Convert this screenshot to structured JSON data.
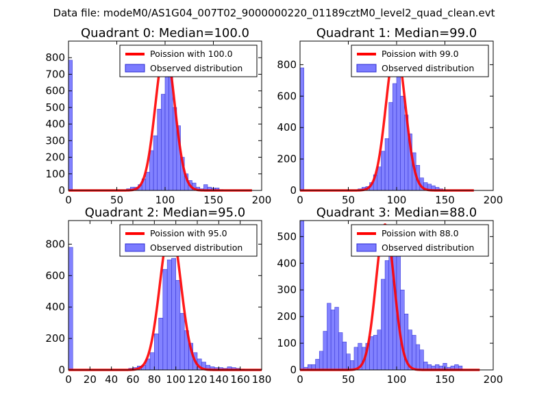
{
  "figure_title": "Data file: modeM0/AS1G04_007T02_9000000220_01189cztM0_level2_quad_clean.evt",
  "colors": {
    "fit": "#ff0000",
    "hist_fill": "#7b7bff",
    "hist_edge": "#2a2ad0",
    "axis": "#000000"
  },
  "chart_data": [
    {
      "type": "bar",
      "title": "Quadrant 0: Median=100.0",
      "legend": [
        "Poission with 100.0",
        "Observed distribution"
      ],
      "xlim": [
        0,
        200
      ],
      "ylim": [
        0,
        900
      ],
      "xticks": [
        0,
        50,
        100,
        150,
        200
      ],
      "yticks": [
        0,
        100,
        200,
        300,
        400,
        500,
        600,
        700,
        800
      ],
      "xtick_labels": [
        "0",
        "50",
        "100",
        "150",
        "200"
      ],
      "ytick_labels": [
        "0",
        "100",
        "200",
        "300",
        "400",
        "500",
        "600",
        "700",
        "800"
      ],
      "bin_width": 4,
      "bins": [
        [
          0,
          785
        ],
        [
          60,
          10
        ],
        [
          64,
          20
        ],
        [
          68,
          20
        ],
        [
          72,
          35
        ],
        [
          76,
          70
        ],
        [
          80,
          110
        ],
        [
          84,
          240
        ],
        [
          88,
          330
        ],
        [
          92,
          490
        ],
        [
          96,
          580
        ],
        [
          100,
          690
        ],
        [
          104,
          760
        ],
        [
          108,
          500
        ],
        [
          112,
          390
        ],
        [
          116,
          200
        ],
        [
          120,
          100
        ],
        [
          124,
          60
        ],
        [
          128,
          45
        ],
        [
          132,
          20
        ],
        [
          136,
          10
        ],
        [
          140,
          35
        ],
        [
          144,
          20
        ],
        [
          148,
          15
        ],
        [
          152,
          15
        ],
        [
          156,
          5
        ]
      ],
      "fit": {
        "mean": 100,
        "peak": 855,
        "range": [
          0,
          190
        ]
      }
    },
    {
      "type": "bar",
      "title": "Quadrant 1: Median=99.0",
      "legend": [
        "Poission with 99.0",
        "Observed distribution"
      ],
      "xlim": [
        0,
        200
      ],
      "ylim": [
        0,
        950
      ],
      "xticks": [
        0,
        50,
        100,
        150,
        200
      ],
      "yticks": [
        0,
        200,
        400,
        600,
        800
      ],
      "xtick_labels": [
        "0",
        "50",
        "100",
        "150",
        "200"
      ],
      "ytick_labels": [
        "0",
        "200",
        "400",
        "600",
        "800"
      ],
      "bin_width": 4,
      "bins": [
        [
          0,
          780
        ],
        [
          60,
          10
        ],
        [
          64,
          20
        ],
        [
          68,
          25
        ],
        [
          72,
          50
        ],
        [
          76,
          100
        ],
        [
          80,
          150
        ],
        [
          84,
          250
        ],
        [
          88,
          330
        ],
        [
          92,
          560
        ],
        [
          96,
          680
        ],
        [
          100,
          740
        ],
        [
          104,
          600
        ],
        [
          108,
          480
        ],
        [
          112,
          360
        ],
        [
          116,
          240
        ],
        [
          120,
          160
        ],
        [
          124,
          80
        ],
        [
          128,
          50
        ],
        [
          132,
          40
        ],
        [
          136,
          30
        ],
        [
          140,
          20
        ],
        [
          144,
          10
        ]
      ],
      "fit": {
        "mean": 99,
        "peak": 910,
        "range": [
          0,
          180
        ]
      }
    },
    {
      "type": "bar",
      "title": "Quadrant 2: Median=95.0",
      "legend": [
        "Poission with 95.0",
        "Observed distribution"
      ],
      "xlim": [
        0,
        180
      ],
      "ylim": [
        0,
        950
      ],
      "xticks": [
        0,
        20,
        40,
        60,
        80,
        100,
        120,
        140,
        160,
        180
      ],
      "yticks": [
        0,
        200,
        400,
        600,
        800
      ],
      "xtick_labels": [
        "0",
        "20",
        "40",
        "60",
        "80",
        "100",
        "120",
        "140",
        "160",
        "180"
      ],
      "ytick_labels": [
        "0",
        "200",
        "400",
        "600",
        "800"
      ],
      "bin_width": 4,
      "bins": [
        [
          0,
          780
        ],
        [
          56,
          10
        ],
        [
          60,
          15
        ],
        [
          64,
          25
        ],
        [
          68,
          30
        ],
        [
          72,
          70
        ],
        [
          76,
          110
        ],
        [
          80,
          230
        ],
        [
          84,
          330
        ],
        [
          88,
          640
        ],
        [
          92,
          700
        ],
        [
          96,
          710
        ],
        [
          100,
          570
        ],
        [
          104,
          360
        ],
        [
          108,
          250
        ],
        [
          112,
          170
        ],
        [
          116,
          110
        ],
        [
          120,
          70
        ],
        [
          124,
          50
        ],
        [
          128,
          30
        ],
        [
          132,
          20
        ],
        [
          136,
          15
        ],
        [
          140,
          15
        ],
        [
          144,
          10
        ],
        [
          148,
          20
        ],
        [
          152,
          15
        ],
        [
          156,
          10
        ],
        [
          160,
          5
        ]
      ],
      "fit": {
        "mean": 95,
        "peak": 910,
        "range": [
          0,
          180
        ]
      }
    },
    {
      "type": "bar",
      "title": "Quadrant 3: Median=88.0",
      "legend": [
        "Poission with 88.0",
        "Observed distribution"
      ],
      "xlim": [
        0,
        200
      ],
      "ylim": [
        0,
        560
      ],
      "xticks": [
        0,
        50,
        100,
        150,
        200
      ],
      "yticks": [
        0,
        100,
        200,
        300,
        400,
        500
      ],
      "xtick_labels": [
        "0",
        "50",
        "100",
        "150",
        "200"
      ],
      "ytick_labels": [
        "0",
        "100",
        "200",
        "300",
        "400",
        "500"
      ],
      "bin_width": 4,
      "bins": [
        [
          0,
          560
        ],
        [
          4,
          10
        ],
        [
          8,
          20
        ],
        [
          12,
          20
        ],
        [
          16,
          40
        ],
        [
          20,
          70
        ],
        [
          24,
          145
        ],
        [
          28,
          250
        ],
        [
          32,
          225
        ],
        [
          36,
          235
        ],
        [
          40,
          140
        ],
        [
          44,
          105
        ],
        [
          48,
          60
        ],
        [
          52,
          35
        ],
        [
          56,
          85
        ],
        [
          60,
          100
        ],
        [
          64,
          85
        ],
        [
          68,
          100
        ],
        [
          72,
          125
        ],
        [
          76,
          130
        ],
        [
          80,
          150
        ],
        [
          84,
          340
        ],
        [
          88,
          410
        ],
        [
          92,
          460
        ],
        [
          96,
          520
        ],
        [
          100,
          430
        ],
        [
          104,
          300
        ],
        [
          108,
          210
        ],
        [
          112,
          150
        ],
        [
          116,
          130
        ],
        [
          120,
          95
        ],
        [
          124,
          75
        ],
        [
          128,
          30
        ],
        [
          132,
          20
        ],
        [
          136,
          15
        ],
        [
          140,
          20
        ],
        [
          144,
          15
        ],
        [
          148,
          25
        ],
        [
          152,
          10
        ],
        [
          156,
          15
        ],
        [
          160,
          20
        ],
        [
          164,
          15
        ]
      ],
      "fit": {
        "mean": 88,
        "peak": 545,
        "range": [
          0,
          186
        ]
      }
    }
  ]
}
